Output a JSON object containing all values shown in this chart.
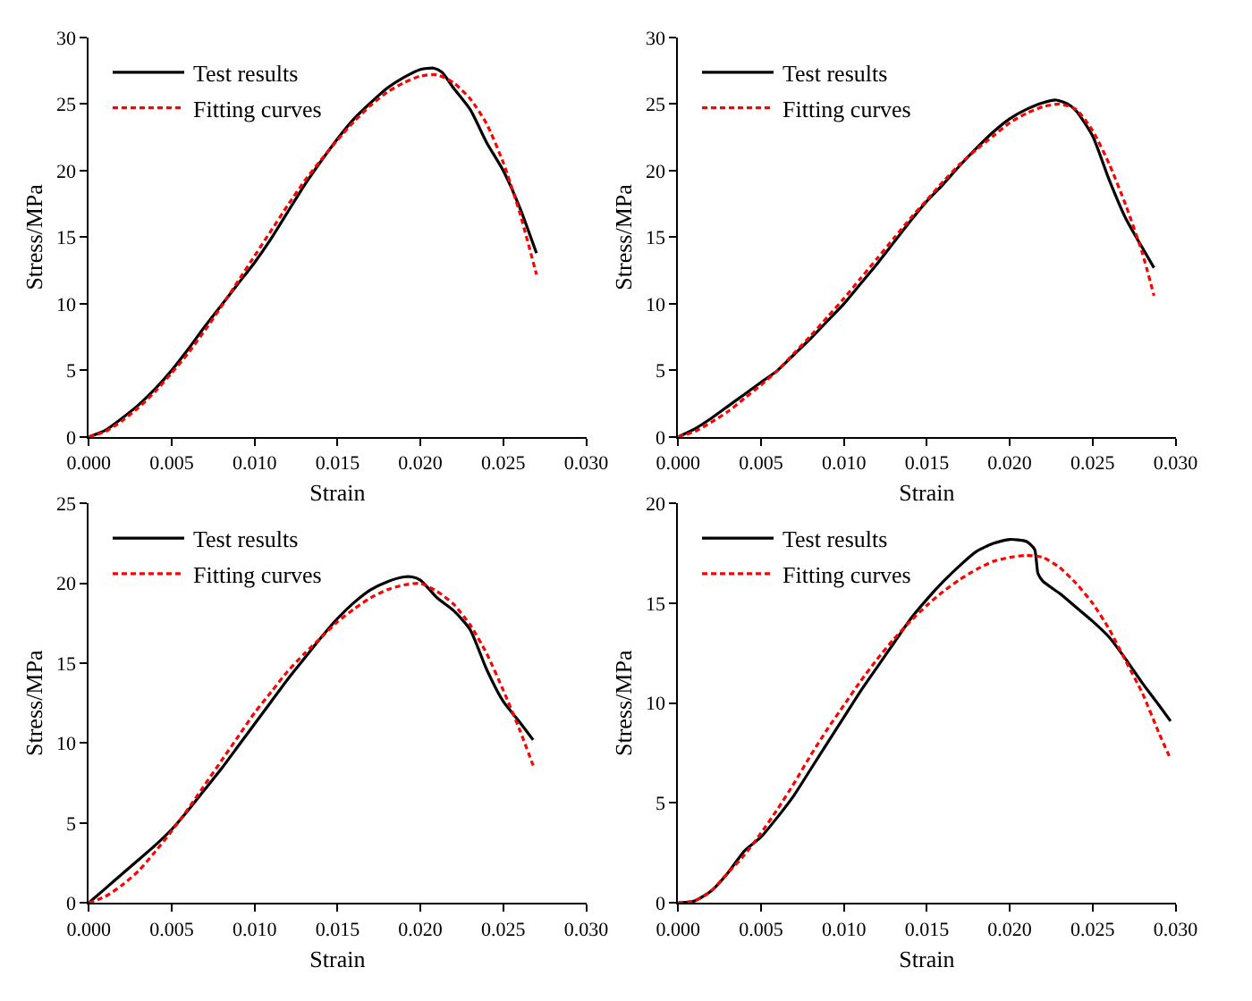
{
  "chart_data": [
    {
      "type": "line",
      "xlabel": "Strain",
      "ylabel": "Stress/MPa",
      "xlim": [
        0,
        0.03
      ],
      "ylim": [
        0,
        30
      ],
      "xticks": [
        {
          "value": 0,
          "label": "0.000"
        },
        {
          "value": 0.005,
          "label": "0.005"
        },
        {
          "value": 0.01,
          "label": "0.010"
        },
        {
          "value": 0.015,
          "label": "0.015"
        },
        {
          "value": 0.02,
          "label": "0.020"
        },
        {
          "value": 0.025,
          "label": "0.025"
        },
        {
          "value": 0.03,
          "label": "0.030"
        }
      ],
      "yticks": [
        0,
        5,
        10,
        15,
        20,
        25,
        30
      ],
      "legend": "top left",
      "series": [
        {
          "name": "Test results",
          "color": "#000000",
          "line_style": "solid",
          "x": [
            0,
            0.001,
            0.002,
            0.003,
            0.004,
            0.005,
            0.006,
            0.007,
            0.008,
            0.009,
            0.01,
            0.011,
            0.012,
            0.013,
            0.014,
            0.015,
            0.016,
            0.017,
            0.018,
            0.019,
            0.02,
            0.0208,
            0.0213,
            0.022,
            0.023,
            0.024,
            0.025,
            0.026,
            0.027
          ],
          "values": [
            0,
            0.5,
            1.4,
            2.4,
            3.6,
            5.0,
            6.6,
            8.3,
            9.9,
            11.5,
            13.1,
            14.9,
            16.9,
            18.9,
            20.7,
            22.4,
            23.9,
            25.1,
            26.2,
            27.0,
            27.6,
            27.7,
            27.4,
            26.2,
            24.6,
            22.1,
            20.0,
            17.2,
            13.8
          ]
        },
        {
          "name": "Fitting curves",
          "color": "#ff0000",
          "line_style": "dashed",
          "x": [
            0,
            0.001,
            0.002,
            0.003,
            0.004,
            0.005,
            0.006,
            0.007,
            0.008,
            0.009,
            0.01,
            0.011,
            0.012,
            0.013,
            0.014,
            0.015,
            0.016,
            0.017,
            0.018,
            0.019,
            0.02,
            0.021,
            0.022,
            0.023,
            0.024,
            0.025,
            0.026,
            0.027
          ],
          "values": [
            0,
            0.4,
            1.2,
            2.2,
            3.4,
            4.8,
            6.3,
            8.0,
            9.8,
            11.7,
            13.6,
            15.5,
            17.4,
            19.2,
            20.8,
            22.3,
            23.7,
            24.9,
            25.9,
            26.6,
            27.1,
            27.2,
            26.6,
            25.4,
            23.5,
            20.6,
            16.8,
            12.2
          ]
        }
      ]
    },
    {
      "type": "line",
      "xlabel": "Strain",
      "ylabel": "Stress/MPa",
      "xlim": [
        0,
        0.03
      ],
      "ylim": [
        0,
        30
      ],
      "xticks": [
        {
          "value": 0,
          "label": "0.000"
        },
        {
          "value": 0.005,
          "label": "0.005"
        },
        {
          "value": 0.01,
          "label": "0.010"
        },
        {
          "value": 0.015,
          "label": "0.015"
        },
        {
          "value": 0.02,
          "label": "0.020"
        },
        {
          "value": 0.025,
          "label": "0.025"
        },
        {
          "value": 0.03,
          "label": "0.030"
        }
      ],
      "yticks": [
        0,
        5,
        10,
        15,
        20,
        25,
        30
      ],
      "legend": "top left",
      "series": [
        {
          "name": "Test results",
          "color": "#000000",
          "line_style": "solid",
          "x": [
            0,
            0.001,
            0.002,
            0.003,
            0.004,
            0.005,
            0.006,
            0.007,
            0.008,
            0.009,
            0.01,
            0.011,
            0.012,
            0.013,
            0.014,
            0.015,
            0.016,
            0.017,
            0.018,
            0.019,
            0.02,
            0.021,
            0.022,
            0.0228,
            0.0235,
            0.024,
            0.025,
            0.026,
            0.027,
            0.028,
            0.0287
          ],
          "values": [
            0,
            0.6,
            1.4,
            2.3,
            3.2,
            4.1,
            5.0,
            6.2,
            7.4,
            8.7,
            10.0,
            11.5,
            13.0,
            14.6,
            16.2,
            17.7,
            19.0,
            20.4,
            21.7,
            22.9,
            23.9,
            24.6,
            25.1,
            25.3,
            25.0,
            24.5,
            22.6,
            19.3,
            16.4,
            14.2,
            12.7
          ]
        },
        {
          "name": "Fitting curves",
          "color": "#ff0000",
          "line_style": "dashed",
          "x": [
            0,
            0.001,
            0.002,
            0.003,
            0.004,
            0.005,
            0.006,
            0.007,
            0.008,
            0.009,
            0.01,
            0.011,
            0.012,
            0.013,
            0.014,
            0.015,
            0.016,
            0.017,
            0.018,
            0.019,
            0.02,
            0.021,
            0.022,
            0.023,
            0.024,
            0.025,
            0.026,
            0.027,
            0.028,
            0.0287
          ],
          "values": [
            0,
            0.4,
            1.1,
            1.9,
            2.9,
            3.9,
            5.0,
            6.3,
            7.6,
            9.0,
            10.4,
            11.9,
            13.4,
            14.9,
            16.4,
            17.8,
            19.2,
            20.5,
            21.6,
            22.6,
            23.6,
            24.3,
            24.8,
            25.0,
            24.6,
            23.0,
            20.5,
            17.4,
            13.8,
            10.6
          ]
        }
      ]
    },
    {
      "type": "line",
      "xlabel": "Strain",
      "ylabel": "Stress/MPa",
      "xlim": [
        0,
        0.03
      ],
      "ylim": [
        0,
        25
      ],
      "xticks": [
        {
          "value": 0,
          "label": "0.000"
        },
        {
          "value": 0.005,
          "label": "0.005"
        },
        {
          "value": 0.01,
          "label": "0.010"
        },
        {
          "value": 0.015,
          "label": "0.015"
        },
        {
          "value": 0.02,
          "label": "0.020"
        },
        {
          "value": 0.025,
          "label": "0.025"
        },
        {
          "value": 0.03,
          "label": "0.030"
        }
      ],
      "yticks": [
        0,
        5,
        10,
        15,
        20,
        25
      ],
      "legend": "top left",
      "series": [
        {
          "name": "Test results",
          "color": "#000000",
          "line_style": "solid",
          "x": [
            0,
            0.001,
            0.002,
            0.003,
            0.004,
            0.005,
            0.006,
            0.007,
            0.008,
            0.009,
            0.01,
            0.011,
            0.012,
            0.013,
            0.014,
            0.015,
            0.016,
            0.017,
            0.018,
            0.019,
            0.0195,
            0.02,
            0.021,
            0.022,
            0.023,
            0.024,
            0.025,
            0.026,
            0.0268
          ],
          "values": [
            0,
            0.9,
            1.8,
            2.7,
            3.6,
            4.6,
            5.8,
            7.1,
            8.4,
            9.8,
            11.2,
            12.6,
            14.0,
            15.3,
            16.6,
            17.8,
            18.8,
            19.6,
            20.1,
            20.4,
            20.4,
            20.2,
            19.1,
            18.3,
            17.1,
            14.6,
            12.6,
            11.3,
            10.2
          ]
        },
        {
          "name": "Fitting curves",
          "color": "#ff0000",
          "line_style": "dashed",
          "x": [
            0,
            0.001,
            0.002,
            0.003,
            0.004,
            0.005,
            0.006,
            0.007,
            0.008,
            0.009,
            0.01,
            0.011,
            0.012,
            0.013,
            0.014,
            0.015,
            0.016,
            0.017,
            0.018,
            0.019,
            0.02,
            0.021,
            0.022,
            0.023,
            0.024,
            0.025,
            0.026,
            0.0268
          ],
          "values": [
            0,
            0.4,
            1.1,
            2.0,
            3.2,
            4.5,
            5.9,
            7.4,
            8.9,
            10.4,
            11.9,
            13.2,
            14.5,
            15.6,
            16.6,
            17.6,
            18.4,
            19.1,
            19.6,
            19.9,
            20.0,
            19.5,
            18.7,
            17.4,
            15.6,
            13.3,
            10.8,
            8.6
          ]
        }
      ]
    },
    {
      "type": "line",
      "xlabel": "Strain",
      "ylabel": "Stress/MPa",
      "xlim": [
        0,
        0.03
      ],
      "ylim": [
        0,
        20
      ],
      "xticks": [
        {
          "value": 0,
          "label": "0.000"
        },
        {
          "value": 0.005,
          "label": "0.005"
        },
        {
          "value": 0.01,
          "label": "0.010"
        },
        {
          "value": 0.015,
          "label": "0.015"
        },
        {
          "value": 0.02,
          "label": "0.020"
        },
        {
          "value": 0.025,
          "label": "0.025"
        },
        {
          "value": 0.03,
          "label": "0.030"
        }
      ],
      "yticks": [
        0,
        5,
        10,
        15,
        20
      ],
      "legend": "top left",
      "series": [
        {
          "name": "Test results",
          "color": "#000000",
          "line_style": "solid",
          "x": [
            0,
            0.001,
            0.002,
            0.003,
            0.004,
            0.005,
            0.006,
            0.007,
            0.008,
            0.009,
            0.01,
            0.011,
            0.012,
            0.013,
            0.014,
            0.015,
            0.016,
            0.017,
            0.018,
            0.019,
            0.02,
            0.021,
            0.0215,
            0.0217,
            0.022,
            0.023,
            0.024,
            0.025,
            0.026,
            0.027,
            0.028,
            0.029,
            0.0297
          ],
          "values": [
            0,
            0.1,
            0.6,
            1.5,
            2.6,
            3.3,
            4.3,
            5.4,
            6.7,
            8.0,
            9.3,
            10.6,
            11.8,
            13.0,
            14.2,
            15.2,
            16.1,
            16.9,
            17.6,
            18.0,
            18.2,
            18.1,
            17.7,
            16.5,
            16.1,
            15.5,
            14.8,
            14.1,
            13.3,
            12.2,
            11.0,
            9.9,
            9.1
          ]
        },
        {
          "name": "Fitting curves",
          "color": "#ff0000",
          "line_style": "dashed",
          "x": [
            0,
            0.001,
            0.002,
            0.003,
            0.004,
            0.005,
            0.006,
            0.007,
            0.008,
            0.009,
            0.01,
            0.011,
            0.012,
            0.013,
            0.014,
            0.015,
            0.016,
            0.017,
            0.018,
            0.019,
            0.02,
            0.021,
            0.022,
            0.023,
            0.024,
            0.025,
            0.026,
            0.027,
            0.028,
            0.029,
            0.0297
          ],
          "values": [
            0,
            0.1,
            0.6,
            1.5,
            2.4,
            3.5,
            4.7,
            6.0,
            7.4,
            8.7,
            9.9,
            11.1,
            12.2,
            13.2,
            14.1,
            14.9,
            15.6,
            16.2,
            16.7,
            17.1,
            17.3,
            17.4,
            17.3,
            16.8,
            16.0,
            15.0,
            13.7,
            12.1,
            10.5,
            8.5,
            7.2
          ]
        }
      ]
    }
  ]
}
